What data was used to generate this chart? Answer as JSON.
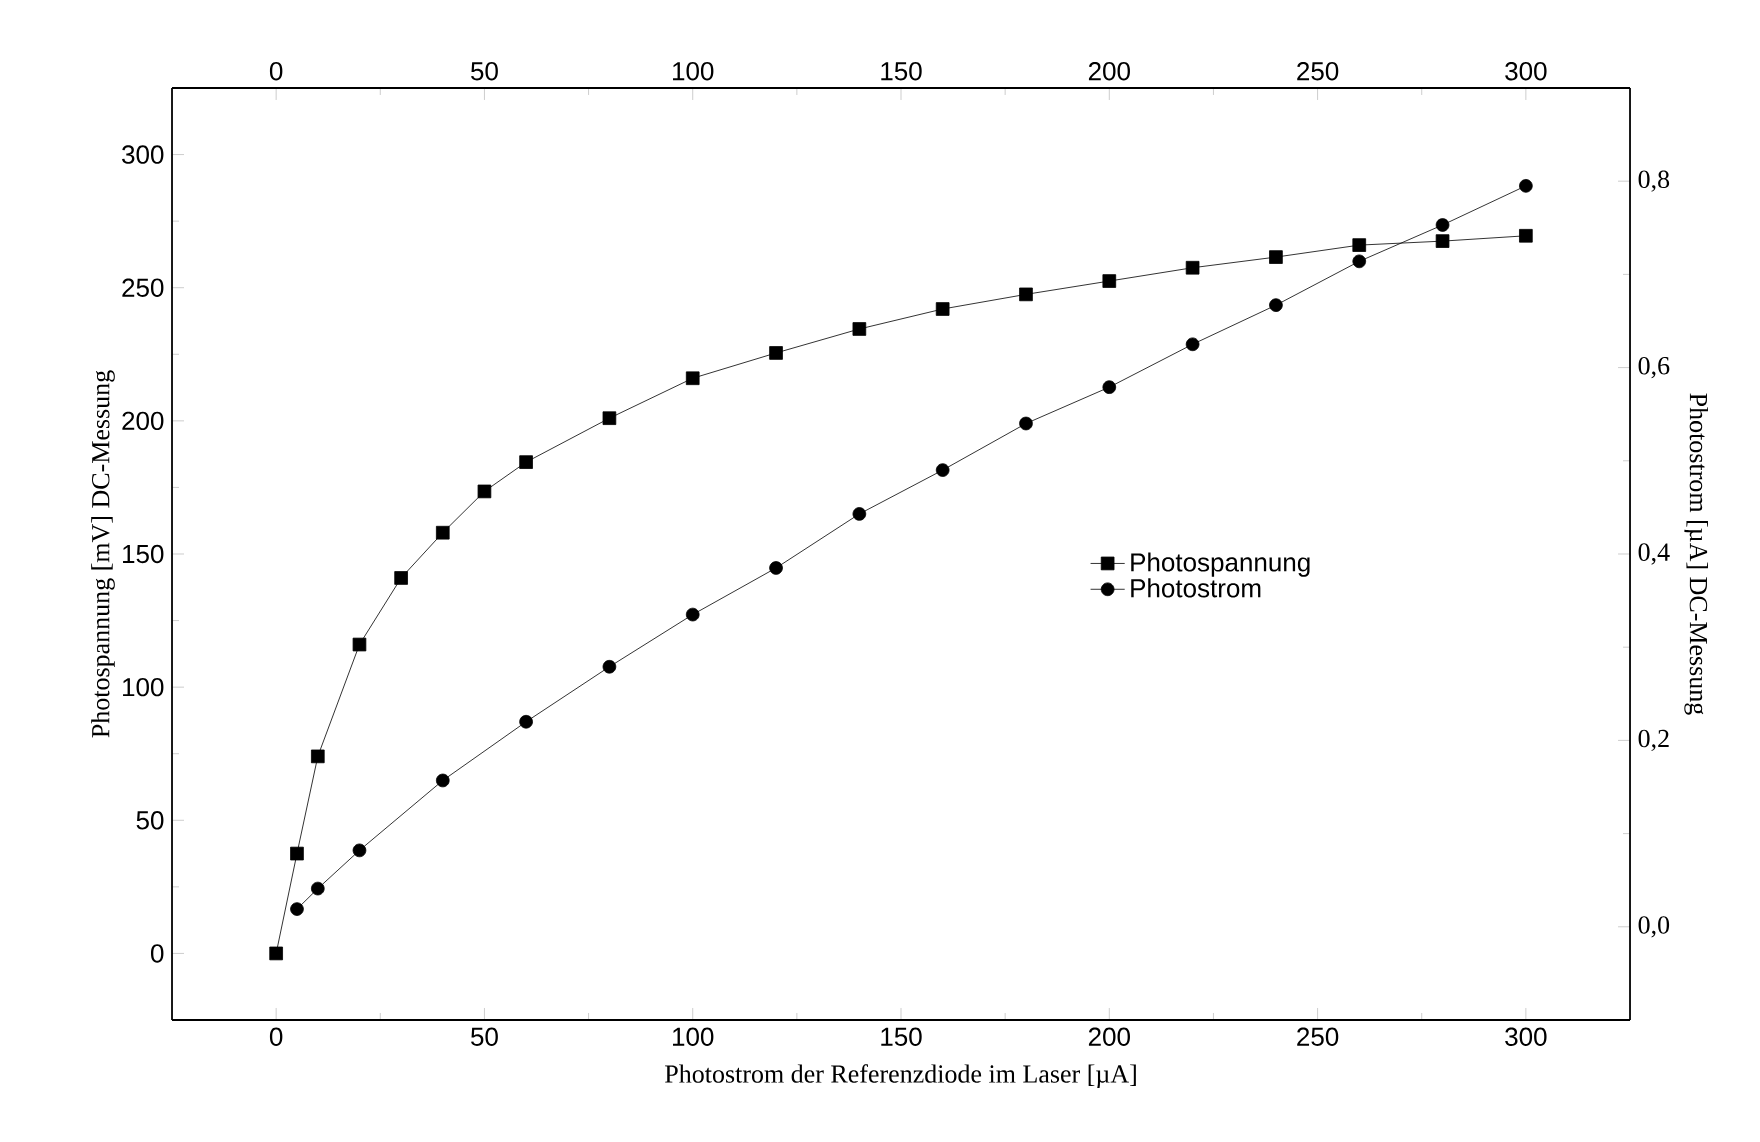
{
  "chart_data": {
    "type": "line",
    "xlabel": "Photostrom der Referenzdiode im Laser [µA]",
    "ylabel": "Photospannung [mV] DC-Messung",
    "y2label": "Photostrom [µA] DC-Messung",
    "xlim": [
      -25,
      325
    ],
    "xticks": [
      0,
      50,
      100,
      150,
      200,
      250,
      300
    ],
    "x2lim": [
      -25,
      325
    ],
    "x2ticks": [
      0,
      50,
      100,
      150,
      200,
      250,
      300
    ],
    "ylim": [
      -25,
      325
    ],
    "yticks": [
      0,
      50,
      100,
      150,
      200,
      250,
      300
    ],
    "y2lim": [
      -0.1,
      0.9
    ],
    "y2ticks": [
      {
        "value": 0.0,
        "label": "0,0"
      },
      {
        "value": 0.2,
        "label": "0,2"
      },
      {
        "value": 0.4,
        "label": "0,4"
      },
      {
        "value": 0.6,
        "label": "0,6"
      },
      {
        "value": 0.8,
        "label": "0,8"
      }
    ],
    "legend": "right",
    "grid": false,
    "line_style": "solid",
    "series": [
      {
        "name": "Photospannung",
        "color": "#000000",
        "marker": "square",
        "axis": "y",
        "x": [
          0,
          5,
          10,
          20,
          30,
          40,
          50,
          60,
          80,
          100,
          120,
          140,
          160,
          180,
          200,
          220,
          240,
          260,
          280,
          300
        ],
        "values": [
          0,
          37.5,
          74,
          116,
          141,
          158,
          173.5,
          184.5,
          201,
          216,
          225.5,
          234.5,
          242,
          247.5,
          252.5,
          257.5,
          261.5,
          266,
          267.5,
          269.5
        ]
      },
      {
        "name": "Photostrom",
        "color": "#000000",
        "marker": "circle",
        "axis": "y2",
        "x": [
          5,
          10,
          20,
          40,
          60,
          80,
          100,
          120,
          140,
          160,
          180,
          200,
          220,
          240,
          260,
          280,
          300
        ],
        "values": [
          0.019,
          0.041,
          0.082,
          0.157,
          0.22,
          0.279,
          0.335,
          0.385,
          0.443,
          0.49,
          0.54,
          0.579,
          0.625,
          0.667,
          0.714,
          0.753,
          0.795
        ]
      }
    ]
  }
}
